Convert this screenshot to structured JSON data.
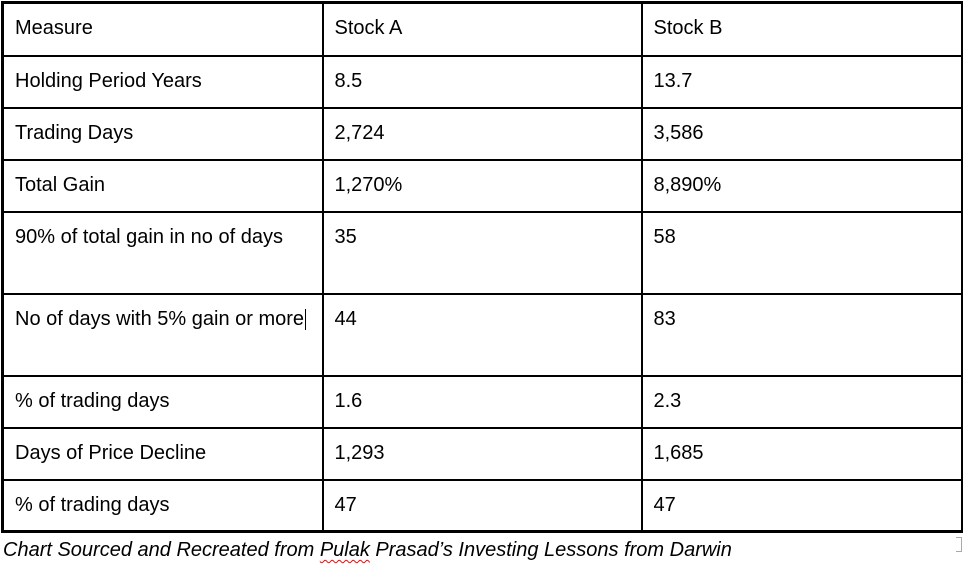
{
  "table": {
    "columns": {
      "measure": "Measure",
      "stock_a": "Stock A",
      "stock_b": "Stock B"
    },
    "rows": [
      {
        "label": "Holding Period Years",
        "a": "8.5",
        "b": "13.7"
      },
      {
        "label": "Trading Days",
        "a": "2,724",
        "b": "3,586"
      },
      {
        "label": "Total Gain",
        "a": "1,270%",
        "b": "8,890%"
      },
      {
        "label": "90% of total gain in no of days",
        "a": "35",
        "b": "58"
      },
      {
        "label": "No of days with 5% gain or more",
        "a": "44",
        "b": "83"
      },
      {
        "label": "% of trading days",
        "a": "1.6",
        "b": "2.3"
      },
      {
        "label": "Days of Price Decline",
        "a": "1,293",
        "b": "1,685"
      },
      {
        "label": "% of trading days",
        "a": "47",
        "b": "47"
      }
    ]
  },
  "caption": {
    "part1": "Chart Sourced and Recreated from ",
    "misspelled_word": "Pulak",
    "part2": " Prasad’s Investing Lessons from Darwin"
  }
}
